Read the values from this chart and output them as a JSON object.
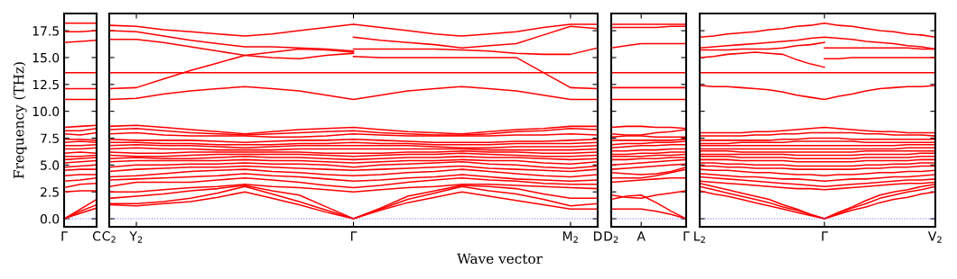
{
  "chart_data": [
    {
      "type": "line",
      "ylabel": "Frequency (THz)",
      "categories": [
        "Γ",
        null,
        "C"
      ],
      "ylim": [
        -0.75,
        19.1
      ],
      "yticks": [
        {
          "value": 0,
          "label": "0.0"
        },
        {
          "value": 2.5,
          "label": "2.5"
        },
        {
          "value": 5,
          "label": "5.0"
        },
        {
          "value": 7.5,
          "label": "7.5"
        },
        {
          "value": 10,
          "label": "10.0"
        },
        {
          "value": 12.5,
          "label": "12.5"
        },
        {
          "value": 15,
          "label": "15.0"
        },
        {
          "value": 17.5,
          "label": "17.5"
        }
      ],
      "grid": false,
      "marker": "none",
      "line_style": "solid",
      "ref_lines": [
        {
          "axis": "y",
          "value": 0,
          "color": "#6666ff",
          "line_style": "dotted"
        }
      ],
      "series": [
        {
          "color": "#ff0000",
          "values": [
            18.2,
            18.2,
            18.2
          ]
        },
        {
          "color": "#ff0000",
          "values": [
            17.4,
            17.4,
            17.5
          ]
        },
        {
          "color": "#ff0000",
          "values": [
            16.4,
            16.5,
            16.6
          ]
        },
        {
          "color": "#ff0000",
          "values": [
            13.6,
            13.6,
            13.6
          ]
        },
        {
          "color": "#ff0000",
          "values": [
            12.1,
            12.1,
            12.1
          ]
        },
        {
          "color": "#ff0000",
          "values": [
            11.1,
            11.1,
            11.1
          ]
        },
        {
          "color": "#ff0000",
          "values": [
            0,
            0.5,
            1.0
          ]
        },
        {
          "color": "#ff0000",
          "values": [
            0,
            0.7,
            1.3
          ]
        },
        {
          "color": "#ff0000",
          "values": [
            0,
            0.9,
            1.8
          ]
        },
        {
          "color": "#ff0000",
          "values": [
            2.5,
            2.6,
            2.6
          ]
        },
        {
          "color": "#ff0000",
          "values": [
            2.9,
            3.2,
            3.3
          ]
        },
        {
          "color": "#ff0000",
          "values": [
            3.5,
            3.6,
            3.8
          ]
        },
        {
          "color": "#ff0000",
          "values": [
            4.0,
            4.1,
            4.1
          ]
        },
        {
          "color": "#ff0000",
          "values": [
            4.5,
            4.6,
            4.6
          ]
        },
        {
          "color": "#ff0000",
          "values": [
            4.8,
            4.9,
            5.0
          ]
        },
        {
          "color": "#ff0000",
          "values": [
            5.2,
            5.3,
            5.4
          ]
        },
        {
          "color": "#ff0000",
          "values": [
            5.5,
            5.6,
            5.7
          ]
        },
        {
          "color": "#ff0000",
          "values": [
            5.8,
            5.8,
            5.9
          ]
        },
        {
          "color": "#ff0000",
          "values": [
            6.1,
            6.2,
            6.1
          ]
        },
        {
          "color": "#ff0000",
          "values": [
            6.5,
            6.5,
            6.6
          ]
        },
        {
          "color": "#ff0000",
          "values": [
            6.8,
            6.8,
            6.9
          ]
        },
        {
          "color": "#ff0000",
          "values": [
            7.1,
            7.2,
            7.1
          ]
        },
        {
          "color": "#ff0000",
          "values": [
            7.4,
            7.4,
            7.3
          ]
        },
        {
          "color": "#ff0000",
          "values": [
            7.9,
            7.8,
            8.0
          ]
        },
        {
          "color": "#ff0000",
          "values": [
            8.2,
            8.2,
            8.4
          ]
        },
        {
          "color": "#ff0000",
          "values": [
            8.5,
            8.6,
            8.7
          ]
        }
      ]
    },
    {
      "type": "line",
      "xlabel": "Wave vector",
      "tick_labels": "x",
      "categories": [
        "C$_{2}$",
        "Y$_{2}$",
        null,
        null,
        null,
        null,
        null,
        null,
        null,
        "Γ",
        null,
        null,
        null,
        null,
        null,
        null,
        null,
        "M$_{2}$",
        "D"
      ],
      "ylim": [
        -0.75,
        19.1
      ],
      "grid": false,
      "marker": "none",
      "line_style": "solid",
      "ref_lines": [
        {
          "axis": "y",
          "value": 0,
          "color": "#6666ff",
          "line_style": "dotted"
        }
      ],
      "series": [
        {
          "color": "#ff0000",
          "values": [
            18.0,
            17.9,
            17.6,
            17.4,
            17.2,
            17.0,
            17.2,
            17.5,
            17.8,
            18.1,
            17.8,
            17.5,
            17.2,
            17.0,
            17.2,
            17.4,
            17.8,
            18.1,
            18.1
          ]
        },
        {
          "color": "#ff0000",
          "values": [
            17.5,
            17.4,
            17.0,
            16.6,
            16.3,
            16.0,
            16.0,
            15.9,
            15.8,
            15.6,
            null,
            null,
            null,
            null,
            null,
            null,
            null,
            null,
            null
          ]
        },
        {
          "color": "#ff0000",
          "values": [
            16.7,
            16.7,
            16.4,
            16.0,
            15.6,
            15.2,
            15.0,
            14.9,
            15.2,
            15.4,
            null,
            null,
            null,
            null,
            null,
            null,
            null,
            null,
            null
          ]
        },
        {
          "color": "#ff0000",
          "values": [
            12.1,
            12.2,
            13.0,
            13.8,
            14.5,
            15.2,
            15.5,
            15.8,
            15.7,
            15.5,
            null,
            null,
            null,
            null,
            null,
            null,
            null,
            null,
            null
          ]
        },
        {
          "color": "#ff0000",
          "values": [
            null,
            null,
            null,
            null,
            null,
            null,
            null,
            null,
            null,
            16.9,
            16.6,
            16.4,
            16.2,
            15.9,
            16.1,
            16.3,
            17.1,
            17.9,
            17.7
          ]
        },
        {
          "color": "#ff0000",
          "values": [
            null,
            null,
            null,
            null,
            null,
            null,
            null,
            null,
            null,
            15.1,
            15.0,
            15.0,
            15.0,
            15.0,
            15.0,
            15.0,
            13.6,
            12.2,
            12.1
          ]
        },
        {
          "color": "#ff0000",
          "values": [
            null,
            null,
            null,
            null,
            null,
            null,
            null,
            null,
            null,
            15.8,
            15.8,
            15.8,
            15.8,
            15.7,
            15.6,
            15.4,
            15.3,
            15.3,
            15.9
          ]
        },
        {
          "color": "#ff0000",
          "values": [
            13.6,
            13.6,
            13.6,
            13.6,
            13.6,
            13.6,
            13.6,
            13.6,
            13.6,
            13.6,
            13.6,
            13.6,
            13.6,
            13.6,
            13.6,
            13.6,
            13.6,
            13.6,
            13.6
          ]
        },
        {
          "color": "#ff0000",
          "values": [
            11.1,
            11.2,
            11.6,
            11.9,
            12.1,
            12.3,
            12.1,
            11.9,
            11.5,
            11.1,
            11.5,
            11.9,
            12.1,
            12.3,
            12.1,
            11.9,
            11.5,
            11.1,
            11.1
          ]
        },
        {
          "color": "#ff0000",
          "values": [
            1.3,
            1.2,
            1.4,
            1.6,
            2.0,
            2.5,
            1.9,
            1.3,
            0.6,
            0,
            0.8,
            1.5,
            2.0,
            2.5,
            2.1,
            1.7,
            1.3,
            0.9,
            0.9
          ]
        },
        {
          "color": "#ff0000",
          "values": [
            1.4,
            1.4,
            1.6,
            1.9,
            2.4,
            3.0,
            2.3,
            1.6,
            0.8,
            0,
            0.9,
            1.8,
            2.4,
            3.0,
            2.6,
            2.3,
            1.8,
            1.2,
            1.4
          ]
        },
        {
          "color": "#ff0000",
          "values": [
            1.9,
            2.1,
            2.3,
            2.6,
            2.8,
            3.1,
            2.6,
            2.2,
            1.1,
            0,
            1.0,
            2.1,
            2.6,
            3.1,
            3.0,
            2.8,
            2.3,
            1.9,
            1.9
          ]
        },
        {
          "color": "#ff0000",
          "values": [
            2.5,
            2.5,
            2.7,
            2.9,
            3.0,
            3.2,
            3.0,
            2.9,
            2.7,
            2.5,
            2.7,
            2.9,
            3.0,
            3.2,
            3.2,
            3.1,
            3.0,
            2.9,
            2.8
          ]
        },
        {
          "color": "#ff0000",
          "values": [
            3.0,
            3.4,
            3.4,
            3.4,
            3.6,
            3.8,
            3.6,
            3.4,
            3.1,
            2.9,
            3.1,
            3.4,
            3.6,
            3.8,
            3.6,
            3.5,
            3.3,
            3.2,
            3.2
          ]
        },
        {
          "color": "#ff0000",
          "values": [
            3.6,
            3.7,
            3.8,
            3.9,
            4.0,
            4.2,
            4.0,
            3.9,
            3.7,
            3.5,
            3.6,
            3.8,
            3.9,
            4.1,
            3.9,
            3.7,
            3.6,
            3.5,
            3.6
          ]
        },
        {
          "color": "#ff0000",
          "values": [
            3.9,
            4.0,
            4.2,
            4.4,
            4.5,
            4.6,
            4.4,
            4.3,
            4.1,
            4.0,
            4.1,
            4.3,
            4.4,
            4.6,
            4.4,
            4.2,
            4.0,
            3.9,
            4.1
          ]
        },
        {
          "color": "#ff0000",
          "values": [
            4.4,
            4.6,
            4.7,
            4.8,
            4.8,
            4.9,
            4.8,
            4.7,
            4.6,
            4.5,
            4.6,
            4.7,
            4.8,
            4.9,
            4.7,
            4.6,
            4.5,
            4.4,
            4.6
          ]
        },
        {
          "color": "#ff0000",
          "values": [
            4.8,
            5.0,
            5.0,
            5.1,
            5.1,
            5.2,
            5.1,
            5.1,
            5.0,
            4.8,
            5.0,
            5.1,
            5.2,
            5.3,
            5.1,
            5.0,
            4.8,
            4.7,
            4.9
          ]
        },
        {
          "color": "#ff0000",
          "values": [
            5.3,
            5.4,
            5.4,
            5.4,
            5.4,
            5.5,
            5.4,
            5.4,
            5.3,
            5.2,
            5.3,
            5.4,
            5.4,
            5.5,
            5.4,
            5.4,
            5.2,
            5.1,
            5.3
          ]
        },
        {
          "color": "#ff0000",
          "values": [
            5.6,
            5.7,
            5.6,
            5.6,
            5.7,
            5.8,
            5.7,
            5.7,
            5.6,
            5.5,
            5.6,
            5.7,
            5.7,
            5.8,
            5.7,
            5.7,
            5.6,
            5.5,
            5.6
          ]
        },
        {
          "color": "#ff0000",
          "values": [
            5.9,
            5.8,
            5.8,
            5.9,
            6.0,
            6.0,
            6.0,
            6.0,
            5.9,
            5.8,
            5.9,
            6.0,
            6.0,
            6.1,
            6.0,
            5.9,
            5.8,
            5.8,
            5.9
          ]
        },
        {
          "color": "#ff0000",
          "values": [
            6.2,
            6.1,
            6.1,
            6.2,
            6.2,
            6.2,
            6.2,
            6.2,
            6.1,
            6.1,
            6.1,
            6.2,
            6.2,
            6.3,
            6.2,
            6.2,
            6.1,
            6.1,
            6.2
          ]
        },
        {
          "color": "#ff0000",
          "values": [
            6.5,
            6.6,
            6.5,
            6.5,
            6.4,
            6.4,
            6.4,
            6.5,
            6.5,
            6.5,
            6.5,
            6.5,
            6.5,
            6.5,
            6.4,
            6.4,
            6.4,
            6.4,
            6.5
          ]
        },
        {
          "color": "#ff0000",
          "values": [
            6.8,
            6.9,
            6.8,
            6.8,
            6.7,
            6.6,
            6.7,
            6.8,
            6.8,
            6.8,
            6.8,
            6.8,
            6.7,
            6.6,
            6.6,
            6.7,
            6.7,
            6.7,
            6.8
          ]
        },
        {
          "color": "#ff0000",
          "values": [
            7.1,
            7.1,
            7.0,
            7.0,
            6.9,
            6.9,
            6.9,
            7.0,
            7.0,
            7.1,
            7.0,
            7.0,
            6.9,
            6.9,
            6.9,
            7.0,
            7.0,
            7.0,
            7.1
          ]
        },
        {
          "color": "#ff0000",
          "values": [
            7.4,
            7.3,
            7.3,
            7.3,
            7.2,
            7.1,
            7.2,
            7.3,
            7.3,
            7.4,
            7.3,
            7.2,
            7.1,
            7.1,
            7.1,
            7.2,
            7.2,
            7.3,
            7.4
          ]
        },
        {
          "color": "#ff0000",
          "values": [
            7.9,
            8.0,
            7.8,
            7.7,
            7.7,
            7.7,
            7.6,
            7.6,
            7.7,
            7.9,
            7.8,
            7.7,
            7.7,
            7.7,
            7.7,
            7.8,
            7.8,
            7.9,
            7.8
          ]
        },
        {
          "color": "#ff0000",
          "values": [
            8.3,
            8.4,
            8.2,
            8.0,
            7.9,
            7.8,
            7.9,
            8.0,
            8.1,
            8.2,
            8.0,
            7.9,
            7.8,
            7.8,
            7.9,
            8.1,
            8.2,
            8.4,
            8.3
          ]
        },
        {
          "color": "#ff0000",
          "values": [
            8.6,
            8.7,
            8.5,
            8.3,
            8.1,
            7.9,
            8.1,
            8.3,
            8.4,
            8.5,
            8.3,
            8.1,
            8.0,
            7.9,
            8.1,
            8.3,
            8.4,
            8.6,
            8.6
          ]
        }
      ]
    },
    {
      "type": "line",
      "tick_labels": "x",
      "categories": [
        "D$_{2}$",
        null,
        "A",
        null,
        null,
        "Γ"
      ],
      "ylim": [
        -0.75,
        19.1
      ],
      "grid": false,
      "marker": "none",
      "line_style": "solid",
      "ref_lines": [
        {
          "axis": "y",
          "value": 0,
          "color": "#6666ff",
          "line_style": "dotted"
        }
      ],
      "series": [
        {
          "color": "#ff0000",
          "values": [
            18.1,
            18.1,
            18.1,
            18.1,
            18.1,
            18.1
          ]
        },
        {
          "color": "#ff0000",
          "values": [
            17.8,
            17.8,
            17.8,
            17.8,
            17.9,
            17.9
          ]
        },
        {
          "color": "#ff0000",
          "values": [
            15.9,
            16.1,
            16.3,
            16.3,
            16.3,
            16.3
          ]
        },
        {
          "color": "#ff0000",
          "values": [
            13.6,
            13.6,
            13.6,
            13.6,
            13.6,
            13.6
          ]
        },
        {
          "color": "#ff0000",
          "values": [
            12.2,
            12.2,
            12.2,
            12.2,
            12.2,
            12.2
          ]
        },
        {
          "color": "#ff0000",
          "values": [
            11.1,
            11.1,
            11.1,
            11.1,
            11.1,
            11.1
          ]
        },
        {
          "color": "#ff0000",
          "values": [
            0.9,
            0.9,
            0.9,
            0.7,
            0.4,
            0
          ]
        },
        {
          "color": "#ff0000",
          "values": [
            1.8,
            2.1,
            2.2,
            1.5,
            0.7,
            0
          ]
        },
        {
          "color": "#ff0000",
          "values": [
            2.2,
            2.0,
            1.9,
            2.2,
            2.4,
            2.6
          ]
        },
        {
          "color": "#ff0000",
          "values": [
            3.4,
            3.5,
            3.6,
            3.7,
            3.8,
            3.8
          ]
        },
        {
          "color": "#ff0000",
          "values": [
            3.8,
            3.8,
            3.8,
            4.0,
            4.3,
            4.6
          ]
        },
        {
          "color": "#ff0000",
          "values": [
            4.3,
            4.2,
            4.1,
            4.2,
            4.4,
            4.8
          ]
        },
        {
          "color": "#ff0000",
          "values": [
            4.6,
            4.7,
            4.8,
            4.9,
            5.0,
            5.1
          ]
        },
        {
          "color": "#ff0000",
          "values": [
            5.0,
            5.1,
            5.2,
            5.3,
            5.4,
            5.5
          ]
        },
        {
          "color": "#ff0000",
          "values": [
            5.5,
            5.5,
            5.6,
            5.6,
            5.7,
            5.7
          ]
        },
        {
          "color": "#ff0000",
          "values": [
            5.8,
            5.8,
            5.8,
            5.9,
            5.9,
            6.0
          ]
        },
        {
          "color": "#ff0000",
          "values": [
            6.0,
            6.0,
            6.1,
            6.1,
            6.2,
            6.2
          ]
        },
        {
          "color": "#ff0000",
          "values": [
            6.3,
            6.3,
            6.4,
            6.4,
            6.5,
            6.5
          ]
        },
        {
          "color": "#ff0000",
          "values": [
            6.6,
            6.7,
            6.8,
            6.8,
            6.9,
            6.9
          ]
        },
        {
          "color": "#ff0000",
          "values": [
            6.9,
            7.0,
            7.0,
            7.1,
            7.1,
            7.2
          ]
        },
        {
          "color": "#ff0000",
          "values": [
            7.3,
            7.3,
            7.3,
            7.3,
            7.3,
            7.4
          ]
        },
        {
          "color": "#ff0000",
          "values": [
            7.6,
            7.7,
            7.7,
            7.6,
            7.6,
            7.6
          ]
        },
        {
          "color": "#ff0000",
          "values": [
            7.9,
            7.8,
            7.8,
            8.0,
            8.1,
            8.3
          ]
        },
        {
          "color": "#ff0000",
          "values": [
            8.5,
            8.6,
            8.6,
            8.5,
            8.5,
            8.4
          ]
        }
      ]
    },
    {
      "type": "line",
      "tick_labels": "x",
      "categories": [
        "L$_{2}$",
        null,
        null,
        null,
        null,
        null,
        null,
        null,
        null,
        "Γ",
        null,
        null,
        null,
        null,
        null,
        null,
        null,
        "V$_{2}$"
      ],
      "ylim": [
        -0.75,
        19.1
      ],
      "grid": false,
      "marker": "none",
      "line_style": "solid",
      "ref_lines": [
        {
          "axis": "y",
          "value": 0,
          "color": "#6666ff",
          "line_style": "dotted"
        }
      ],
      "series": [
        {
          "color": "#ff0000",
          "values": [
            16.9,
            17.0,
            17.2,
            17.3,
            17.4,
            17.6,
            17.7,
            17.9,
            18.0,
            18.2,
            18.0,
            17.9,
            17.7,
            17.5,
            17.4,
            17.2,
            17.1,
            16.9
          ]
        },
        {
          "color": "#ff0000",
          "values": [
            15.9,
            16.0,
            16.1,
            16.2,
            16.3,
            16.4,
            16.5,
            16.6,
            16.8,
            16.9,
            16.8,
            16.7,
            16.5,
            16.4,
            16.3,
            16.1,
            16.0,
            15.8
          ]
        },
        {
          "color": "#ff0000",
          "values": [
            15.7,
            15.7,
            15.7,
            15.8,
            15.8,
            15.8,
            15.9,
            16.1,
            16.2,
            16.4,
            null,
            null,
            null,
            null,
            null,
            null,
            null,
            null
          ]
        },
        {
          "color": "#ff0000",
          "values": [
            15.0,
            15.1,
            15.3,
            15.4,
            15.5,
            15.4,
            15.3,
            14.8,
            14.4,
            14.1,
            null,
            null,
            null,
            null,
            null,
            null,
            null,
            null
          ]
        },
        {
          "color": "#ff0000",
          "values": [
            null,
            null,
            null,
            null,
            null,
            null,
            null,
            null,
            null,
            15.9,
            15.9,
            15.9,
            15.9,
            15.9,
            15.9,
            15.9,
            15.8,
            15.8
          ]
        },
        {
          "color": "#ff0000",
          "values": [
            null,
            null,
            null,
            null,
            null,
            null,
            null,
            null,
            null,
            14.9,
            14.9,
            15.0,
            15.0,
            15.0,
            15.0,
            15.0,
            15.0,
            15.0
          ]
        },
        {
          "color": "#ff0000",
          "values": [
            13.6,
            13.6,
            13.6,
            13.6,
            13.6,
            13.6,
            13.6,
            13.6,
            13.6,
            13.6,
            13.6,
            13.6,
            13.6,
            13.6,
            13.6,
            13.6,
            13.6,
            13.6
          ]
        },
        {
          "color": "#ff0000",
          "values": [
            12.4,
            12.3,
            12.3,
            12.2,
            12.1,
            12.0,
            11.8,
            11.5,
            11.3,
            11.1,
            11.4,
            11.6,
            11.9,
            12.1,
            12.2,
            12.3,
            12.3,
            12.4
          ]
        },
        {
          "color": "#ff0000",
          "values": [
            2.6,
            2.3,
            2.1,
            1.8,
            1.5,
            1.2,
            0.9,
            0.6,
            0.3,
            0,
            0.4,
            0.8,
            1.1,
            1.5,
            1.8,
            2.0,
            2.3,
            2.5
          ]
        },
        {
          "color": "#ff0000",
          "values": [
            3.0,
            2.7,
            2.4,
            2.1,
            1.8,
            1.5,
            1.1,
            0.8,
            0.4,
            0,
            0.5,
            1.0,
            1.4,
            1.9,
            2.2,
            2.5,
            2.7,
            3.0
          ]
        },
        {
          "color": "#ff0000",
          "values": [
            3.3,
            3.0,
            2.7,
            2.4,
            2.1,
            1.8,
            1.3,
            0.9,
            0.4,
            0,
            0.6,
            1.1,
            1.7,
            2.2,
            2.5,
            2.7,
            3.0,
            3.2
          ]
        },
        {
          "color": "#ff0000",
          "values": [
            3.5,
            3.4,
            3.3,
            3.2,
            3.1,
            3.0,
            2.9,
            2.8,
            2.8,
            2.7,
            2.8,
            2.9,
            3.0,
            3.1,
            3.2,
            3.3,
            3.3,
            3.4
          ]
        },
        {
          "color": "#ff0000",
          "values": [
            3.9,
            3.8,
            3.7,
            3.6,
            3.5,
            3.4,
            3.3,
            3.2,
            3.1,
            3.0,
            3.1,
            3.2,
            3.3,
            3.4,
            3.5,
            3.6,
            3.6,
            3.7
          ]
        },
        {
          "color": "#ff0000",
          "values": [
            4.2,
            4.1,
            4.0,
            3.9,
            3.9,
            3.8,
            3.7,
            3.7,
            3.6,
            3.5,
            3.6,
            3.7,
            3.7,
            3.8,
            3.9,
            3.9,
            4.0,
            4.1
          ]
        },
        {
          "color": "#ff0000",
          "values": [
            4.6,
            4.5,
            4.5,
            4.4,
            4.3,
            4.3,
            4.2,
            4.1,
            4.1,
            4.0,
            4.1,
            4.1,
            4.2,
            4.3,
            4.3,
            4.4,
            4.4,
            4.5
          ]
        },
        {
          "color": "#ff0000",
          "values": [
            4.9,
            4.9,
            4.8,
            4.8,
            4.7,
            4.7,
            4.7,
            4.6,
            4.6,
            4.6,
            4.6,
            4.6,
            4.7,
            4.7,
            4.8,
            4.8,
            4.9,
            4.9
          ]
        },
        {
          "color": "#ff0000",
          "values": [
            5.2,
            5.2,
            5.1,
            5.1,
            5.0,
            5.0,
            5.0,
            4.9,
            4.9,
            4.9,
            4.9,
            4.9,
            5.0,
            5.0,
            5.1,
            5.1,
            5.2,
            5.2
          ]
        },
        {
          "color": "#ff0000",
          "values": [
            5.5,
            5.5,
            5.5,
            5.4,
            5.4,
            5.4,
            5.4,
            5.3,
            5.3,
            5.3,
            5.3,
            5.3,
            5.4,
            5.4,
            5.4,
            5.4,
            5.5,
            5.5
          ]
        },
        {
          "color": "#ff0000",
          "values": [
            5.8,
            5.8,
            5.8,
            5.7,
            5.7,
            5.7,
            5.7,
            5.6,
            5.6,
            5.6,
            5.6,
            5.6,
            5.7,
            5.7,
            5.7,
            5.7,
            5.8,
            5.8
          ]
        },
        {
          "color": "#ff0000",
          "values": [
            6.0,
            6.0,
            6.0,
            6.0,
            6.0,
            6.0,
            6.0,
            5.9,
            5.9,
            5.9,
            5.9,
            5.9,
            6.0,
            6.0,
            6.0,
            6.0,
            6.1,
            6.1
          ]
        },
        {
          "color": "#ff0000",
          "values": [
            6.3,
            6.3,
            6.3,
            6.2,
            6.2,
            6.2,
            6.2,
            6.2,
            6.2,
            6.2,
            6.2,
            6.2,
            6.3,
            6.3,
            6.3,
            6.3,
            6.3,
            6.3
          ]
        },
        {
          "color": "#ff0000",
          "values": [
            6.5,
            6.5,
            6.5,
            6.5,
            6.5,
            6.5,
            6.5,
            6.5,
            6.5,
            6.5,
            6.5,
            6.5,
            6.5,
            6.5,
            6.5,
            6.6,
            6.6,
            6.6
          ]
        },
        {
          "color": "#ff0000",
          "values": [
            6.8,
            6.8,
            6.8,
            6.8,
            6.8,
            6.8,
            6.8,
            6.8,
            6.8,
            6.8,
            6.8,
            6.8,
            6.8,
            6.8,
            6.8,
            6.9,
            6.9,
            6.9
          ]
        },
        {
          "color": "#ff0000",
          "values": [
            7.0,
            7.0,
            7.0,
            7.1,
            7.1,
            7.1,
            7.1,
            7.2,
            7.2,
            7.2,
            7.2,
            7.2,
            7.1,
            7.1,
            7.1,
            7.1,
            7.1,
            7.1
          ]
        },
        {
          "color": "#ff0000",
          "values": [
            7.3,
            7.3,
            7.3,
            7.3,
            7.3,
            7.3,
            7.4,
            7.4,
            7.5,
            7.5,
            7.5,
            7.4,
            7.4,
            7.4,
            7.4,
            7.4,
            7.4,
            7.4
          ]
        },
        {
          "color": "#ff0000",
          "values": [
            7.7,
            7.7,
            7.7,
            7.7,
            7.8,
            7.8,
            7.9,
            7.9,
            8.0,
            8.0,
            8.0,
            8.0,
            7.9,
            7.9,
            7.8,
            7.8,
            7.8,
            7.7
          ]
        },
        {
          "color": "#ff0000",
          "values": [
            8.0,
            8.0,
            8.0,
            8.0,
            8.1,
            8.1,
            8.2,
            8.3,
            8.4,
            8.5,
            8.4,
            8.3,
            8.2,
            8.1,
            8.1,
            8.0,
            8.0,
            8.0
          ]
        }
      ]
    }
  ]
}
